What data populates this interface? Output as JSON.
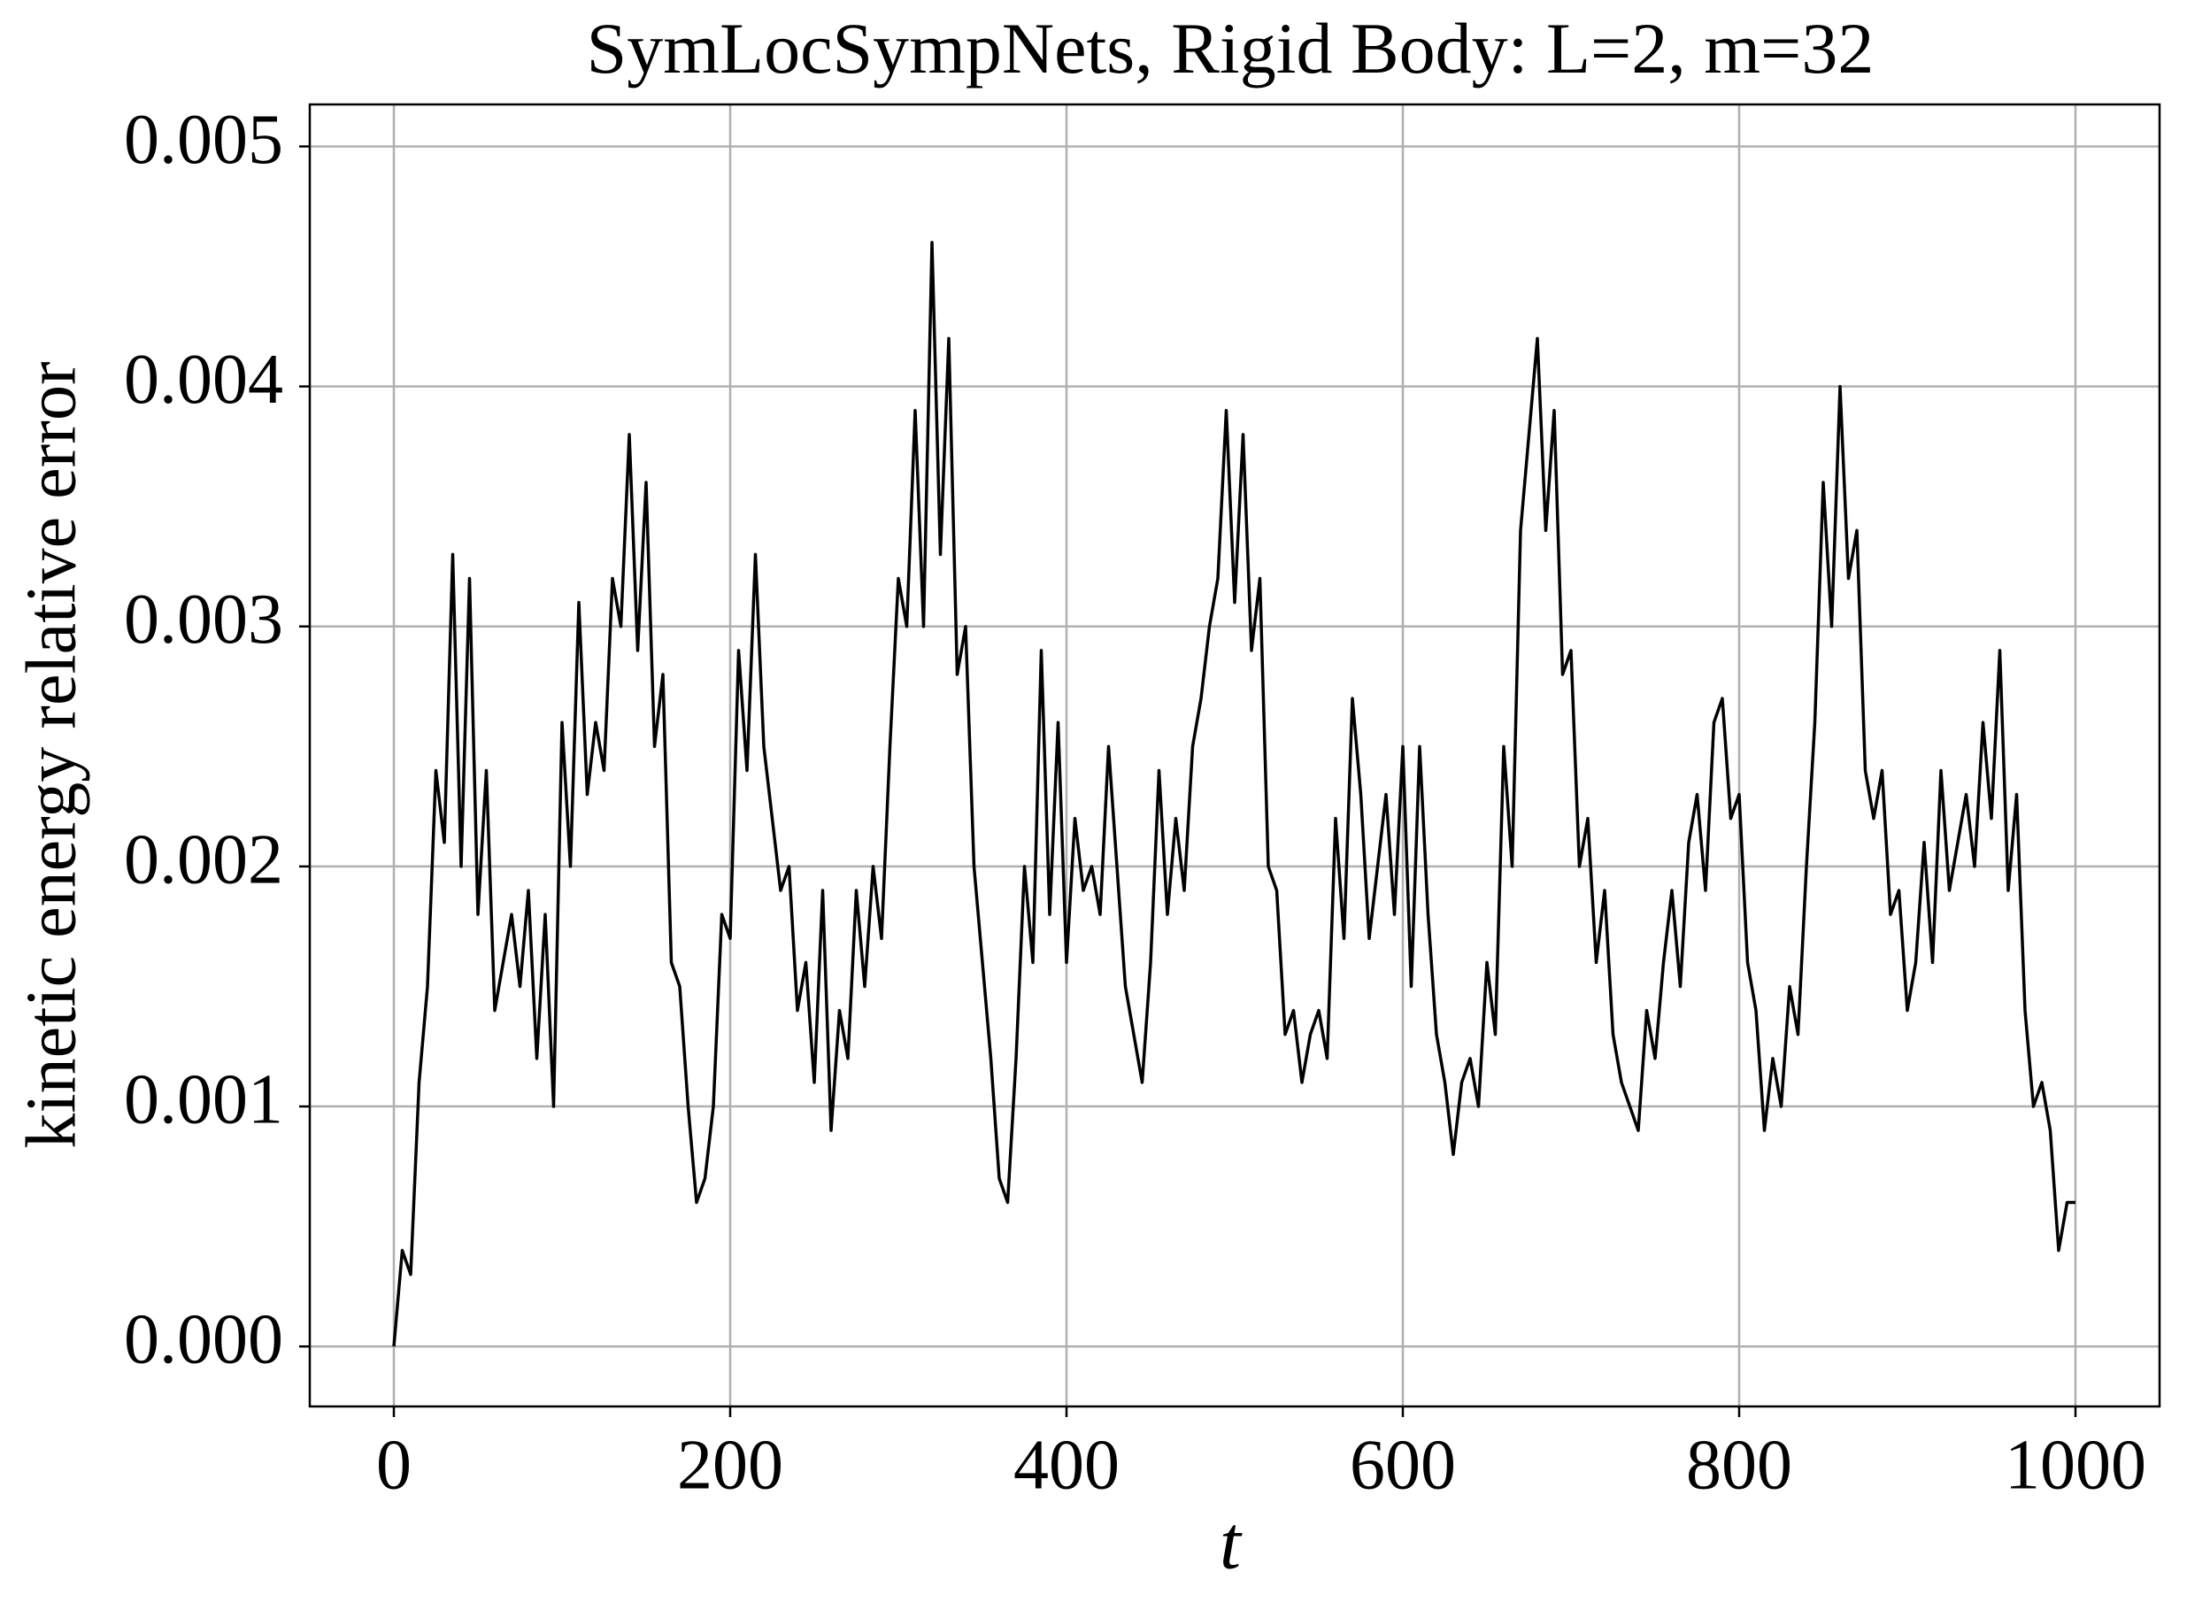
{
  "chart_data": {
    "type": "line",
    "title": "SymLocSympNets, Rigid Body: L=2, m=32",
    "xlabel": "t",
    "ylabel": "kinetic energy relative error",
    "color": "#000000",
    "grid": true,
    "xlim": [
      -50,
      1050
    ],
    "ylim": [
      -0.00025,
      0.005175
    ],
    "xticks": [
      0,
      200,
      400,
      600,
      800,
      1000
    ],
    "yticks": [
      {
        "value": 0,
        "label": "0.000"
      },
      {
        "value": 0.001,
        "label": "0.001"
      },
      {
        "value": 0.002,
        "label": "0.002"
      },
      {
        "value": 0.003,
        "label": "0.003"
      },
      {
        "value": 0.004,
        "label": "0.004"
      },
      {
        "value": 0.005,
        "label": "0.005"
      }
    ],
    "x": [
      0,
      5,
      10,
      15,
      20,
      25,
      30,
      35,
      40,
      45,
      50,
      55,
      60,
      65,
      70,
      75,
      80,
      85,
      90,
      95,
      100,
      105,
      110,
      115,
      120,
      125,
      130,
      135,
      140,
      145,
      150,
      155,
      160,
      165,
      170,
      175,
      180,
      185,
      190,
      195,
      200,
      205,
      210,
      215,
      220,
      225,
      230,
      235,
      240,
      245,
      250,
      255,
      260,
      265,
      270,
      275,
      280,
      285,
      290,
      295,
      300,
      305,
      310,
      315,
      320,
      325,
      330,
      335,
      340,
      345,
      350,
      355,
      360,
      365,
      370,
      375,
      380,
      385,
      390,
      395,
      400,
      405,
      410,
      415,
      420,
      425,
      430,
      435,
      440,
      445,
      450,
      455,
      460,
      465,
      470,
      475,
      480,
      485,
      490,
      495,
      500,
      505,
      510,
      515,
      520,
      525,
      530,
      535,
      540,
      545,
      550,
      555,
      560,
      565,
      570,
      575,
      580,
      585,
      590,
      595,
      600,
      605,
      610,
      615,
      620,
      625,
      630,
      635,
      640,
      645,
      650,
      655,
      660,
      665,
      670,
      675,
      680,
      685,
      690,
      695,
      700,
      705,
      710,
      715,
      720,
      725,
      730,
      735,
      740,
      745,
      750,
      755,
      760,
      765,
      770,
      775,
      780,
      785,
      790,
      795,
      800,
      805,
      810,
      815,
      820,
      825,
      830,
      835,
      840,
      845,
      850,
      855,
      860,
      865,
      870,
      875,
      880,
      885,
      890,
      895,
      900,
      905,
      910,
      915,
      920,
      925,
      930,
      935,
      940,
      945,
      950,
      955,
      960,
      965,
      970,
      975,
      980,
      985,
      990,
      995,
      1000
    ],
    "values": [
      0.0,
      0.0004,
      0.0003,
      0.0011,
      0.0015,
      0.0024,
      0.0021,
      0.0033,
      0.002,
      0.0032,
      0.0018,
      0.0024,
      0.0014,
      0.0016,
      0.0018,
      0.0015,
      0.0019,
      0.0012,
      0.0018,
      0.001,
      0.0026,
      0.002,
      0.0031,
      0.0023,
      0.0026,
      0.0024,
      0.0032,
      0.003,
      0.0038,
      0.0029,
      0.0036,
      0.0025,
      0.0028,
      0.0016,
      0.0015,
      0.001,
      0.0006,
      0.0007,
      0.001,
      0.0018,
      0.0017,
      0.0029,
      0.0024,
      0.0033,
      0.0025,
      0.0022,
      0.0019,
      0.002,
      0.0014,
      0.0016,
      0.0011,
      0.0019,
      0.0009,
      0.0014,
      0.0012,
      0.0019,
      0.0015,
      0.002,
      0.0017,
      0.0025,
      0.0032,
      0.003,
      0.0039,
      0.003,
      0.0046,
      0.0033,
      0.0042,
      0.0028,
      0.003,
      0.002,
      0.0016,
      0.0012,
      0.0007,
      0.0006,
      0.0012,
      0.002,
      0.0016,
      0.0029,
      0.0018,
      0.0026,
      0.0016,
      0.0022,
      0.0019,
      0.002,
      0.0018,
      0.0025,
      0.002,
      0.0015,
      0.0013,
      0.0011,
      0.0016,
      0.0024,
      0.0018,
      0.0022,
      0.0019,
      0.0025,
      0.0027,
      0.003,
      0.0032,
      0.0039,
      0.0031,
      0.0038,
      0.0029,
      0.0032,
      0.002,
      0.0019,
      0.0013,
      0.0014,
      0.0011,
      0.0013,
      0.0014,
      0.0012,
      0.0022,
      0.0017,
      0.0027,
      0.0023,
      0.0017,
      0.002,
      0.0023,
      0.0018,
      0.0025,
      0.0015,
      0.0025,
      0.0018,
      0.0013,
      0.0011,
      0.0008,
      0.0011,
      0.0012,
      0.001,
      0.0016,
      0.0013,
      0.0025,
      0.002,
      0.0034,
      0.0038,
      0.0042,
      0.0034,
      0.0039,
      0.0028,
      0.0029,
      0.002,
      0.0022,
      0.0016,
      0.0019,
      0.0013,
      0.0011,
      0.001,
      0.0009,
      0.0014,
      0.0012,
      0.0016,
      0.0019,
      0.0015,
      0.0021,
      0.0023,
      0.0019,
      0.0026,
      0.0027,
      0.0022,
      0.0023,
      0.0016,
      0.0014,
      0.0009,
      0.0012,
      0.001,
      0.0015,
      0.0013,
      0.002,
      0.0026,
      0.0036,
      0.003,
      0.004,
      0.0032,
      0.0034,
      0.0024,
      0.0022,
      0.0024,
      0.0018,
      0.0019,
      0.0014,
      0.0016,
      0.0021,
      0.0016,
      0.0024,
      0.0019,
      0.0021,
      0.0023,
      0.002,
      0.0026,
      0.0022,
      0.0029,
      0.0019,
      0.0023,
      0.0014,
      0.001,
      0.0011,
      0.0009,
      0.0004,
      0.0006,
      0.0006
    ]
  }
}
